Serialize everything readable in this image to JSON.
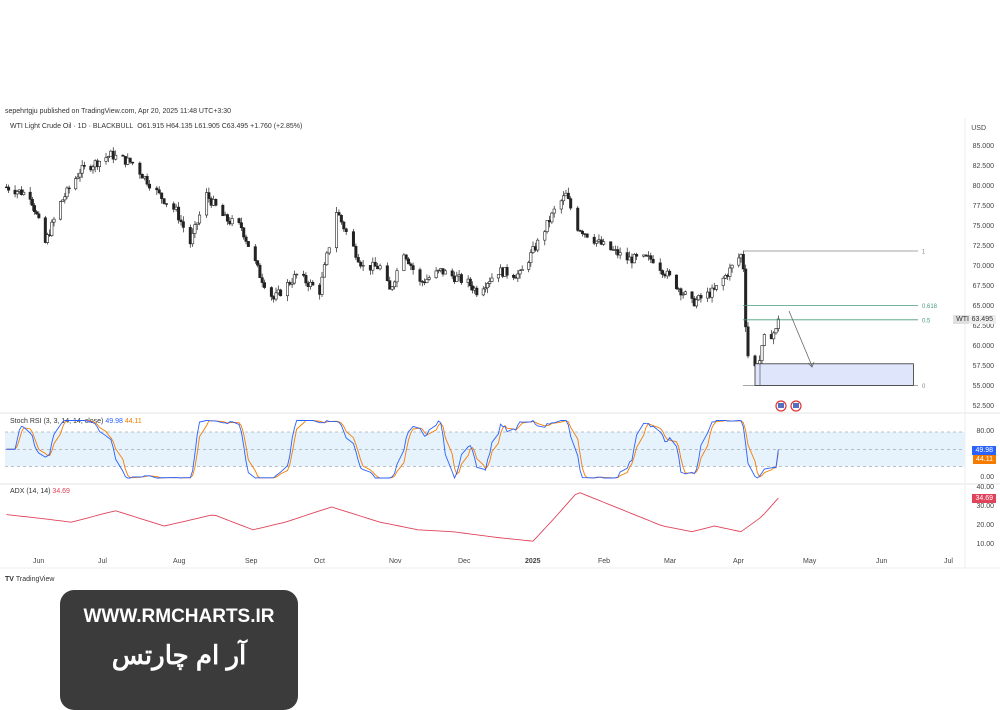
{
  "header": {
    "published": "sepehrtgju published on TradingView.com, Apr 20, 2025 11:48 UTC+3:30",
    "symbol": "WTI Light Crude Oil · 1D · BLACKBULL",
    "open": "O61.915",
    "high": "H64.135",
    "low": "L61.905",
    "close": "C63.495",
    "change": "+1.760 (+2.85%)"
  },
  "footer": {
    "brand": "TradingView"
  },
  "watermark": {
    "url": "WWW.RMCHARTS.IR",
    "name": "آر ام چارتس"
  },
  "colors": {
    "up": "#ffffff",
    "down": "#222222",
    "stoch_k": "#2962ff",
    "stoch_d": "#f57c00",
    "adx": "#e0435a",
    "fib": "#4a9a78",
    "zone": "#dfe6fb"
  },
  "chart_data": [
    {
      "type": "candlestick",
      "currency": "USD",
      "ylim": [
        52.5,
        85
      ],
      "yticks": [
        "85.000",
        "82.500",
        "80.000",
        "77.500",
        "75.000",
        "72.500",
        "70.000",
        "67.500",
        "65.000",
        "62.500",
        "60.000",
        "57.500",
        "55.000",
        "52.500"
      ],
      "xticks": [
        "Jun",
        "Jul",
        "Aug",
        "Sep",
        "Oct",
        "Nov",
        "Dec",
        "2025",
        "Feb",
        "Mar",
        "Apr",
        "May",
        "Jun",
        "Jul"
      ],
      "last_price_label": "WTI",
      "last_price": "63.495",
      "close_path": [
        [
          "2024-05-16",
          80
        ],
        [
          "2024-05-27",
          79
        ],
        [
          "2024-06-03",
          73
        ],
        [
          "2024-06-10",
          78
        ],
        [
          "2024-06-19",
          82
        ],
        [
          "2024-07-03",
          84
        ],
        [
          "2024-07-12",
          83
        ],
        [
          "2024-07-23",
          79
        ],
        [
          "2024-07-30",
          77
        ],
        [
          "2024-08-05",
          73
        ],
        [
          "2024-08-12",
          79
        ],
        [
          "2024-08-20",
          76
        ],
        [
          "2024-08-27",
          75
        ],
        [
          "2024-09-04",
          69
        ],
        [
          "2024-09-10",
          66
        ],
        [
          "2024-09-20",
          69
        ],
        [
          "2024-09-30",
          67
        ],
        [
          "2024-10-07",
          77
        ],
        [
          "2024-10-13",
          73
        ],
        [
          "2024-10-18",
          70
        ],
        [
          "2024-10-25",
          70
        ],
        [
          "2024-10-29",
          67
        ],
        [
          "2024-11-04",
          72
        ],
        [
          "2024-11-11",
          68
        ],
        [
          "2024-11-20",
          69.5
        ],
        [
          "2024-12-02",
          68
        ],
        [
          "2024-12-06",
          67
        ],
        [
          "2024-12-16",
          69.5
        ],
        [
          "2024-12-26",
          69
        ],
        [
          "2025-01-03",
          73
        ],
        [
          "2025-01-10",
          77
        ],
        [
          "2025-01-15",
          79
        ],
        [
          "2025-01-20",
          75
        ],
        [
          "2025-01-29",
          73
        ],
        [
          "2025-02-10",
          71
        ],
        [
          "2025-02-21",
          71
        ],
        [
          "2025-02-27",
          69
        ],
        [
          "2025-03-10",
          65.5
        ],
        [
          "2025-03-20",
          67
        ],
        [
          "2025-04-01",
          71.5
        ],
        [
          "2025-04-02",
          70
        ],
        [
          "2025-04-03",
          63
        ],
        [
          "2025-04-04",
          59
        ],
        [
          "2025-04-08",
          57
        ],
        [
          "2025-04-11",
          61
        ],
        [
          "2025-04-16",
          62
        ],
        [
          "2025-04-17",
          63.495
        ]
      ],
      "fibonacci": [
        {
          "level": "1",
          "price": 72
        },
        {
          "level": "0.618",
          "price": 65.2
        },
        {
          "level": "0.5",
          "price": 63.4
        },
        {
          "level": "0",
          "price": 55.2
        }
      ],
      "target_zone": {
        "from": "2025-04-07",
        "to": "2025-06-14",
        "top": 57.9,
        "bottom": 55.2
      }
    },
    {
      "type": "line",
      "title": "Stoch RSI (3, 3, 14, 14, close)",
      "ylim": [
        0,
        100
      ],
      "yticks": [
        "80.00",
        "0.00"
      ],
      "bands": [
        80,
        50,
        20
      ],
      "series": [
        {
          "name": "K",
          "last": "49.98"
        },
        {
          "name": "D",
          "last": "44.11"
        }
      ]
    },
    {
      "type": "line",
      "title": "ADX (14, 14)",
      "ylim": [
        5,
        40
      ],
      "yticks": [
        "40.00",
        "30.00",
        "20.00",
        "10.00"
      ],
      "series": [
        {
          "name": "ADX",
          "last": "34.69",
          "path": [
            [
              "2024-05-16",
              26
            ],
            [
              "2024-06-01",
              24
            ],
            [
              "2024-06-15",
              22
            ],
            [
              "2024-07-05",
              28
            ],
            [
              "2024-07-25",
              20
            ],
            [
              "2024-08-15",
              26
            ],
            [
              "2024-09-01",
              18
            ],
            [
              "2024-09-15",
              22
            ],
            [
              "2024-10-05",
              30
            ],
            [
              "2024-10-25",
              22
            ],
            [
              "2024-11-10",
              18
            ],
            [
              "2024-11-25",
              17
            ],
            [
              "2024-12-15",
              14
            ],
            [
              "2025-01-01",
              12
            ],
            [
              "2025-01-10",
              24
            ],
            [
              "2025-01-20",
              38
            ],
            [
              "2025-02-05",
              30
            ],
            [
              "2025-02-25",
              20
            ],
            [
              "2025-03-10",
              17
            ],
            [
              "2025-03-20",
              20
            ],
            [
              "2025-04-01",
              17
            ],
            [
              "2025-04-10",
              25
            ],
            [
              "2025-04-17",
              34.69
            ]
          ]
        }
      ]
    }
  ]
}
